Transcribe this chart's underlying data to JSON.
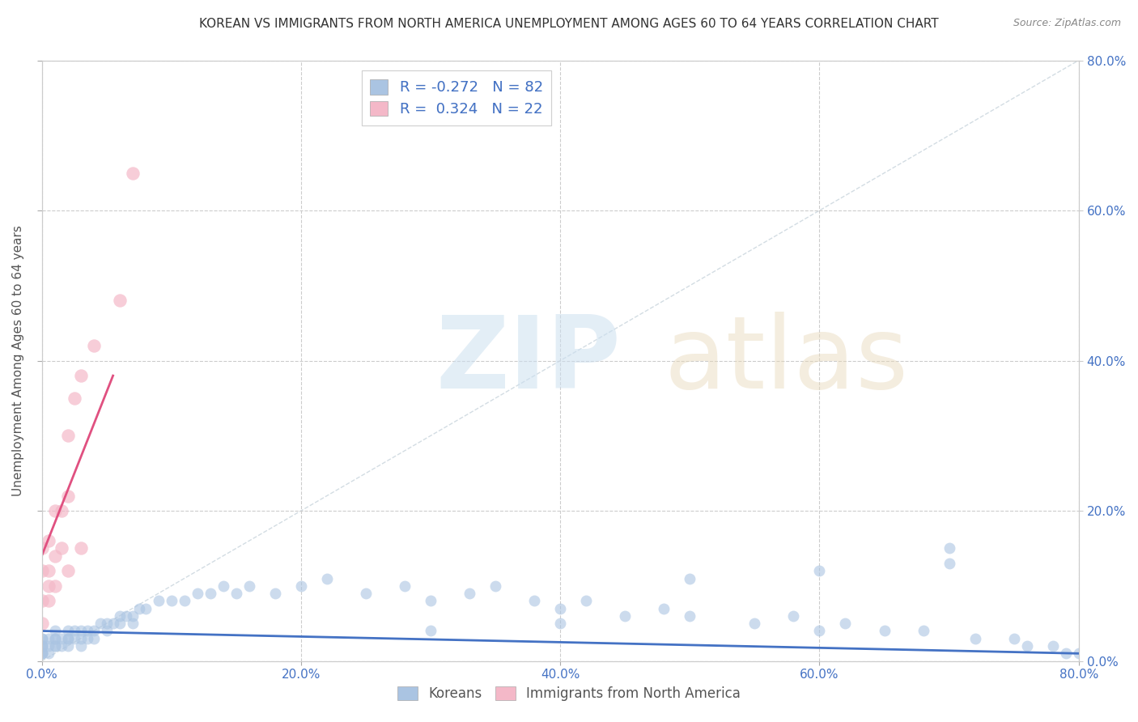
{
  "title": "KOREAN VS IMMIGRANTS FROM NORTH AMERICA UNEMPLOYMENT AMONG AGES 60 TO 64 YEARS CORRELATION CHART",
  "source": "Source: ZipAtlas.com",
  "ylabel_left": "Unemployment Among Ages 60 to 64 years",
  "legend_label1": "Koreans",
  "legend_label2": "Immigrants from North America",
  "R1": "-0.272",
  "N1": "82",
  "R2": "0.324",
  "N2": "22",
  "color_korean": "#aac4e2",
  "color_immigrant": "#f4b8c8",
  "color_korean_line": "#4472c4",
  "color_immigrant_line": "#e05080",
  "color_diagonal": "#c8d4dc",
  "background_color": "#ffffff",
  "title_fontsize": 11,
  "axis_label_fontsize": 11,
  "tick_fontsize": 11,
  "xlim": [
    0,
    0.8
  ],
  "ylim": [
    0,
    0.8
  ],
  "korean_x": [
    0.0,
    0.0,
    0.0,
    0.0,
    0.0,
    0.0,
    0.0,
    0.0,
    0.005,
    0.005,
    0.005,
    0.01,
    0.01,
    0.01,
    0.01,
    0.01,
    0.015,
    0.015,
    0.02,
    0.02,
    0.02,
    0.02,
    0.025,
    0.025,
    0.03,
    0.03,
    0.03,
    0.035,
    0.035,
    0.04,
    0.04,
    0.045,
    0.05,
    0.05,
    0.055,
    0.06,
    0.06,
    0.065,
    0.07,
    0.07,
    0.075,
    0.08,
    0.09,
    0.1,
    0.11,
    0.12,
    0.13,
    0.14,
    0.15,
    0.16,
    0.18,
    0.2,
    0.22,
    0.25,
    0.28,
    0.3,
    0.33,
    0.35,
    0.38,
    0.4,
    0.42,
    0.45,
    0.48,
    0.5,
    0.55,
    0.58,
    0.6,
    0.62,
    0.65,
    0.68,
    0.7,
    0.72,
    0.75,
    0.76,
    0.78,
    0.79,
    0.8,
    0.3,
    0.4,
    0.5,
    0.6,
    0.7
  ],
  "korean_y": [
    0.01,
    0.02,
    0.03,
    0.01,
    0.02,
    0.03,
    0.01,
    0.02,
    0.02,
    0.03,
    0.01,
    0.02,
    0.03,
    0.04,
    0.02,
    0.03,
    0.02,
    0.03,
    0.03,
    0.04,
    0.02,
    0.03,
    0.03,
    0.04,
    0.04,
    0.03,
    0.02,
    0.04,
    0.03,
    0.04,
    0.03,
    0.05,
    0.04,
    0.05,
    0.05,
    0.06,
    0.05,
    0.06,
    0.06,
    0.05,
    0.07,
    0.07,
    0.08,
    0.08,
    0.08,
    0.09,
    0.09,
    0.1,
    0.09,
    0.1,
    0.09,
    0.1,
    0.11,
    0.09,
    0.1,
    0.08,
    0.09,
    0.1,
    0.08,
    0.07,
    0.08,
    0.06,
    0.07,
    0.06,
    0.05,
    0.06,
    0.04,
    0.05,
    0.04,
    0.04,
    0.15,
    0.03,
    0.03,
    0.02,
    0.02,
    0.01,
    0.01,
    0.04,
    0.05,
    0.11,
    0.12,
    0.13
  ],
  "immig_x": [
    0.0,
    0.0,
    0.0,
    0.0,
    0.005,
    0.005,
    0.005,
    0.005,
    0.01,
    0.01,
    0.01,
    0.015,
    0.015,
    0.02,
    0.02,
    0.02,
    0.025,
    0.03,
    0.03,
    0.04,
    0.06,
    0.07
  ],
  "immig_y": [
    0.05,
    0.08,
    0.12,
    0.15,
    0.08,
    0.12,
    0.16,
    0.1,
    0.14,
    0.2,
    0.1,
    0.2,
    0.15,
    0.22,
    0.3,
    0.12,
    0.35,
    0.38,
    0.15,
    0.42,
    0.48,
    0.65
  ],
  "korean_line_x": [
    0.0,
    0.8
  ],
  "korean_line_y": [
    0.04,
    0.01
  ],
  "immig_line_x": [
    0.0,
    0.055
  ],
  "immig_line_y": [
    0.14,
    0.38
  ]
}
